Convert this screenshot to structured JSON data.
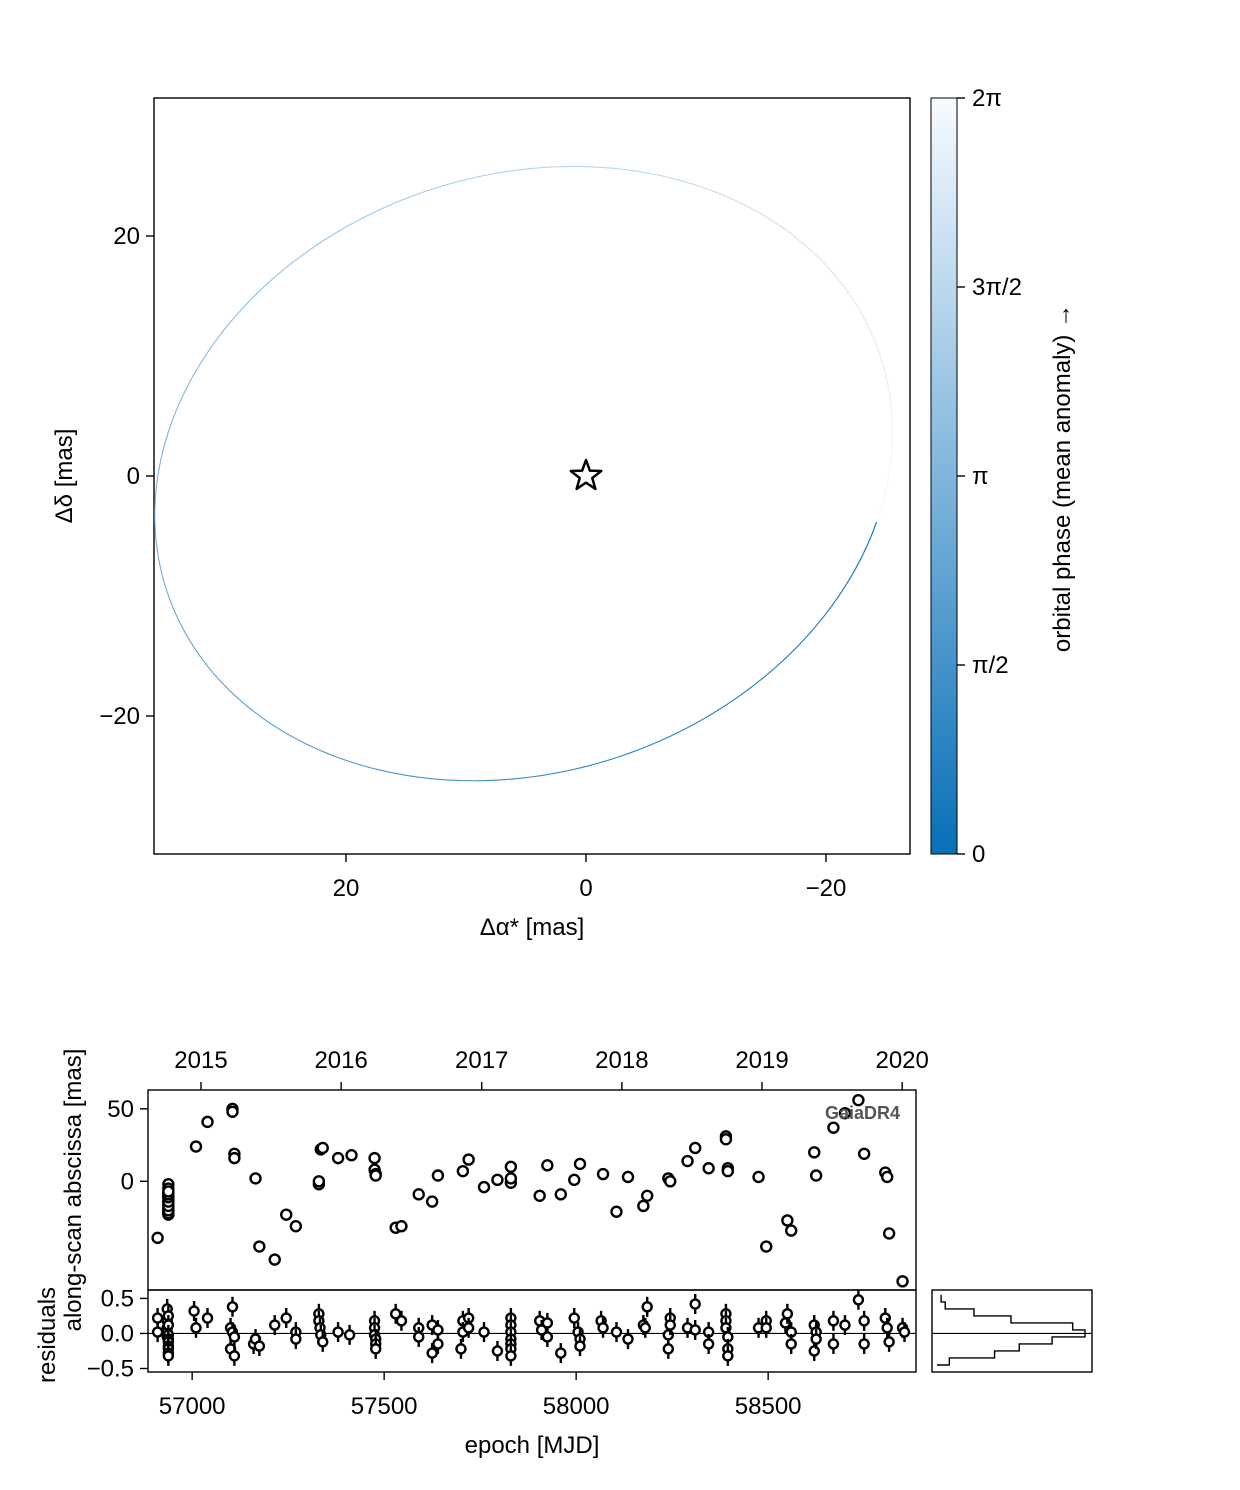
{
  "chart_data": [
    {
      "id": "orbit",
      "type": "line",
      "xlabel": "Δα* [mas]",
      "ylabel": "Δδ [mas]",
      "xlim": [
        36,
        -27
      ],
      "ylim": [
        -31.5,
        31.5
      ],
      "xticks": [
        20,
        0,
        -20
      ],
      "xtick_labels": [
        "20",
        "0",
        "−20"
      ],
      "yticks": [
        20,
        0,
        -20
      ],
      "ytick_labels": [
        "20",
        "0",
        "−20"
      ],
      "ellipse": {
        "center": [
          5.2,
          0.2
        ],
        "semi_major": 31.3,
        "semi_minor": 24.9,
        "rotation_deg": 161.8
      },
      "star_position": [
        0,
        0
      ],
      "grid": false,
      "colorbar": {
        "label": "orbital phase (mean anomaly) →",
        "range": [
          0,
          6.2832
        ],
        "ticks": [
          0,
          1.5708,
          3.1416,
          4.7124,
          6.2832
        ],
        "tick_labels": [
          "0",
          "π/2",
          "π",
          "3π/2",
          "2π"
        ],
        "color_low": "#0870b8",
        "color_high": "#f7fbff"
      }
    },
    {
      "id": "abscissa",
      "type": "scatter",
      "ylabel": "along-scan abscissa [mas]",
      "annotation": "GaiaDR4",
      "xlim": [
        56885,
        58885
      ],
      "ylim": [
        -75,
        63
      ],
      "yticks": [
        0,
        50
      ],
      "ytick_labels": [
        "0",
        "50"
      ],
      "top_axis_ticks_mjd": [
        57023,
        57388,
        57754,
        58119,
        58484,
        58849
      ],
      "top_axis_labels": [
        "2015",
        "2016",
        "2017",
        "2018",
        "2019",
        "2020"
      ],
      "x": [
        56910,
        56938,
        56938,
        56938,
        56938,
        56938,
        56938,
        56938,
        56938,
        56938,
        56938,
        56938,
        56938,
        56938,
        56938,
        56938,
        56938,
        56938,
        56938,
        56938,
        56938,
        57010,
        57040,
        57105,
        57105,
        57110,
        57110,
        57165,
        57175,
        57215,
        57245,
        57270,
        57330,
        57330,
        57335,
        57340,
        57380,
        57415,
        57475,
        57475,
        57478,
        57478,
        57530,
        57545,
        57590,
        57625,
        57640,
        57705,
        57720,
        57760,
        57795,
        57830,
        57830,
        57830,
        57905,
        57925,
        57960,
        57995,
        58010,
        58070,
        58105,
        58135,
        58175,
        58185,
        58240,
        58245,
        58290,
        58310,
        58345,
        58390,
        58390,
        58395,
        58395,
        58475,
        58495,
        58550,
        58560,
        58620,
        58625,
        58670,
        58700,
        58735,
        58750,
        58805,
        58810,
        58815,
        58850
      ],
      "y": [
        -39,
        -2,
        -5,
        -8,
        -10,
        -12,
        -14,
        -16,
        -18,
        -19,
        -20,
        -21,
        -22,
        -23,
        -22,
        -20,
        -17,
        -14,
        -11,
        -9,
        -7,
        24,
        41,
        50,
        48,
        19,
        16,
        2,
        -45,
        -54,
        -23,
        -31,
        -2,
        0,
        22,
        23,
        16,
        18,
        16,
        8,
        5,
        4,
        -32,
        -31,
        -9,
        -14,
        4,
        7,
        15,
        -4,
        1,
        -1,
        2,
        10,
        -10,
        11,
        -9,
        1,
        12,
        5,
        -21,
        3,
        -17,
        -10,
        2,
        0,
        14,
        23,
        9,
        31,
        29,
        9,
        7,
        3,
        -45,
        -27,
        -34,
        20,
        4,
        37,
        47,
        56,
        19,
        6,
        3,
        -36,
        -69
      ]
    },
    {
      "id": "residuals",
      "type": "scatter",
      "xlabel": "epoch [MJD]",
      "ylabel": "residuals",
      "xlim": [
        56885,
        58885
      ],
      "ylim": [
        -0.55,
        0.62
      ],
      "xticks": [
        57000,
        57500,
        58000,
        58500
      ],
      "xtick_labels": [
        "57000",
        "57500",
        "58000",
        "58500"
      ],
      "yticks": [
        -0.5,
        0.0,
        0.5
      ],
      "ytick_labels": [
        "−0.5",
        "0.0",
        "0.5"
      ],
      "x": [
        56910,
        56910,
        56935,
        56935,
        56935,
        56935,
        56935,
        56938,
        56938,
        56938,
        56938,
        56938,
        56938,
        56938,
        56938,
        56938,
        57005,
        57010,
        57040,
        57100,
        57100,
        57105,
        57105,
        57110,
        57110,
        57160,
        57165,
        57175,
        57215,
        57245,
        57270,
        57270,
        57330,
        57330,
        57333,
        57335,
        57340,
        57380,
        57410,
        57475,
        57475,
        57475,
        57478,
        57478,
        57478,
        57530,
        57545,
        57590,
        57590,
        57625,
        57625,
        57640,
        57640,
        57700,
        57705,
        57705,
        57720,
        57720,
        57760,
        57795,
        57830,
        57830,
        57830,
        57830,
        57830,
        57830,
        57830,
        57905,
        57910,
        57925,
        57925,
        57960,
        57995,
        58005,
        58010,
        58010,
        58065,
        58070,
        58105,
        58135,
        58175,
        58180,
        58185,
        58240,
        58240,
        58245,
        58245,
        58290,
        58310,
        58310,
        58345,
        58345,
        58390,
        58390,
        58390,
        58395,
        58395,
        58395,
        58475,
        58495,
        58495,
        58545,
        58550,
        58560,
        58560,
        58620,
        58620,
        58625,
        58625,
        58670,
        58670,
        58700,
        58735,
        58750,
        58750,
        58805,
        58810,
        58815,
        58850,
        58855
      ],
      "y": [
        0.22,
        0.02,
        0.35,
        0.18,
        0.08,
        0.02,
        -0.05,
        0.25,
        0.12,
        -0.02,
        -0.08,
        -0.12,
        -0.18,
        -0.22,
        -0.28,
        -0.32,
        0.32,
        0.08,
        0.22,
        0.08,
        -0.22,
        0.38,
        0.02,
        -0.05,
        -0.32,
        -0.15,
        -0.08,
        -0.18,
        0.12,
        0.22,
        0.02,
        -0.08,
        0.28,
        0.18,
        0.08,
        -0.02,
        -0.12,
        0.02,
        -0.02,
        0.18,
        0.08,
        -0.02,
        -0.08,
        -0.15,
        -0.22,
        0.28,
        0.18,
        0.08,
        -0.05,
        0.12,
        -0.28,
        0.05,
        -0.15,
        -0.22,
        0.18,
        0.02,
        0.22,
        0.08,
        0.02,
        -0.25,
        0.22,
        0.12,
        0.02,
        -0.08,
        -0.15,
        -0.22,
        -0.32,
        0.18,
        0.05,
        -0.05,
        0.15,
        -0.28,
        0.22,
        0.02,
        -0.08,
        -0.18,
        0.18,
        0.08,
        0.02,
        -0.08,
        0.12,
        0.08,
        0.38,
        -0.02,
        -0.22,
        0.22,
        0.12,
        0.08,
        0.42,
        0.05,
        0.02,
        -0.15,
        0.28,
        0.18,
        0.08,
        -0.05,
        -0.22,
        -0.32,
        0.08,
        0.18,
        0.08,
        0.15,
        0.28,
        0.02,
        -0.15,
        0.12,
        -0.25,
        0.02,
        -0.08,
        0.18,
        -0.15,
        0.12,
        0.48,
        0.18,
        -0.15,
        0.22,
        0.08,
        -0.12,
        0.08,
        0.02
      ]
    },
    {
      "id": "residual_histogram",
      "type": "histogram",
      "bin_edges": [
        -0.45,
        -0.35,
        -0.25,
        -0.15,
        -0.05,
        0.05,
        0.15,
        0.25,
        0.35,
        0.45,
        0.55
      ],
      "counts": [
        3,
        14,
        20,
        28,
        36,
        33,
        18,
        9,
        2,
        1
      ]
    }
  ]
}
